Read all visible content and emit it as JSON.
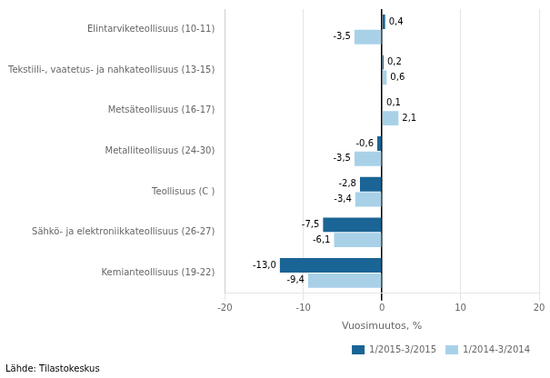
{
  "chart_data": {
    "type": "bar",
    "orientation": "horizontal",
    "categories": [
      "Elintarviketeollisuus (10-11)",
      "Tekstiili-, vaatetus- ja nahkateollisuus (13-15)",
      "Metsäteollisuus (16-17)",
      "Metalliteollisuus (24-30)",
      "Teollisuus (C )",
      "Sähkö- ja elektroniikkateollisuus (26-27)",
      "Kemianteollisuus (19-22)"
    ],
    "series": [
      {
        "name": "1/2015-3/2015",
        "color": "#1a6496",
        "values": [
          0.4,
          0.2,
          0.1,
          -0.6,
          -2.8,
          -7.5,
          -13.0
        ],
        "value_labels": [
          "0,4",
          "0,2",
          "0,1",
          "-0,6",
          "-2,8",
          "-7,5",
          "-13,0"
        ]
      },
      {
        "name": "1/2014-3/2014",
        "color": "#a8d1e8",
        "values": [
          -3.5,
          0.6,
          2.1,
          -3.5,
          -3.4,
          -6.1,
          -9.4
        ],
        "value_labels": [
          "-3,5",
          "0,6",
          "2,1",
          "-3,5",
          "-3,4",
          "-6,1",
          "-9,4"
        ]
      }
    ],
    "xlabel": "Vuosimuutos, %",
    "xlim": [
      -20,
      20
    ],
    "xticks": [
      -20,
      -10,
      0,
      10,
      20
    ],
    "grid": true,
    "legend": "lower right",
    "data_labels": true,
    "source": "Lähde: Tilastokeskus"
  }
}
